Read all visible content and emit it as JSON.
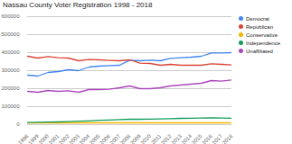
{
  "chart_data": {
    "type": "line",
    "title": "Nassau County Voter Registration 1998 - 2018",
    "x": [
      1998,
      1999,
      2000,
      2001,
      2002,
      2003,
      2004,
      2005,
      2006,
      2007,
      2008,
      2009,
      2010,
      2011,
      2012,
      2013,
      2014,
      2015,
      2016,
      2017,
      2018
    ],
    "xlim": [
      1998,
      2018
    ],
    "xticks": [
      1998,
      1999,
      2000,
      2001,
      2002,
      2003,
      2004,
      2005,
      2006,
      2007,
      2008,
      2009,
      2010,
      2011,
      2012,
      2013,
      2014,
      2015,
      2016,
      2017,
      2018
    ],
    "ylim": [
      0,
      600000
    ],
    "yticks": [
      0,
      100000,
      200000,
      300000,
      400000,
      500000,
      600000
    ],
    "grid": true,
    "legend": "right",
    "series": [
      {
        "name": "Democrat",
        "color": "#4285f4",
        "values": [
          275000,
          270000,
          290000,
          295000,
          305000,
          300000,
          320000,
          325000,
          328000,
          330000,
          358000,
          355000,
          358000,
          355000,
          368000,
          372000,
          375000,
          380000,
          398000,
          398000,
          400000
        ]
      },
      {
        "name": "Republican",
        "color": "#db4437",
        "values": [
          380000,
          370000,
          378000,
          372000,
          370000,
          355000,
          362000,
          360000,
          357000,
          355000,
          360000,
          342000,
          340000,
          330000,
          335000,
          330000,
          330000,
          330000,
          338000,
          335000,
          332000
        ]
      },
      {
        "name": "Conservative",
        "color": "#f4b400",
        "values": [
          9000,
          9000,
          9500,
          9500,
          10000,
          10000,
          10000,
          10000,
          10000,
          10000,
          10000,
          10000,
          10000,
          10000,
          10000,
          10000,
          10000,
          10000,
          10000,
          10000,
          10000
        ]
      },
      {
        "name": "Independence",
        "color": "#0f9d58",
        "values": [
          12000,
          13000,
          14000,
          15000,
          17000,
          19000,
          21000,
          24000,
          26000,
          28000,
          30000,
          30000,
          31000,
          32000,
          33000,
          35000,
          36000,
          37000,
          38000,
          37000,
          36000
        ]
      },
      {
        "name": "Unaffiliated",
        "color": "#ab47bc",
        "values": [
          185000,
          180000,
          190000,
          185000,
          188000,
          180000,
          195000,
          195000,
          197000,
          205000,
          215000,
          200000,
          200000,
          205000,
          215000,
          220000,
          225000,
          230000,
          245000,
          242000,
          248000
        ]
      }
    ]
  }
}
